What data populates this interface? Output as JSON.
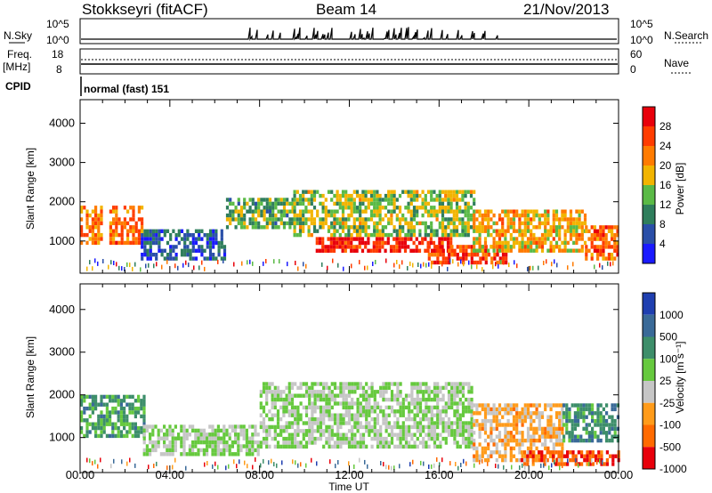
{
  "header": {
    "station": "Stokkseyri (fitACF)",
    "beam": "Beam 14",
    "date": "21/Nov/2013"
  },
  "status_panels": {
    "nsky_label": "N.Sky",
    "nsky_ticks": [
      "10^5",
      "10^0"
    ],
    "nsearch_label": "N.Search",
    "nsearch_ticks": [
      "10^5",
      "10^0"
    ],
    "freq_label": "Freq.",
    "freq_unit": "[MHz]",
    "freq_ticks": [
      "18",
      "8"
    ],
    "nave_label": "Nave",
    "nave_ticks": [
      "60",
      "0"
    ],
    "cpid_label": "CPID",
    "cpid_value": "normal (fast) 151"
  },
  "colors": {
    "power_scale": [
      "#1a1aff",
      "#2a4fa8",
      "#2f7e5c",
      "#5aba46",
      "#f2b400",
      "#ff7b00",
      "#ff3c00",
      "#e8000b"
    ],
    "velocity_scale": [
      "#1f3fb0",
      "#3a6a98",
      "#3d8e6a",
      "#66c93e",
      "#c6c6c6",
      "#ff9b1a",
      "#ff6a00",
      "#e8000b"
    ]
  },
  "chart_data": [
    {
      "type": "heatmap",
      "panel": "power",
      "xlabel": "",
      "ylabel": "Slant Range [km]",
      "x_ticks": [
        "00:00",
        "04:00",
        "08:00",
        "12:00",
        "16:00",
        "20:00",
        "00:00"
      ],
      "y_ticks": [
        1000,
        2000,
        3000,
        4000
      ],
      "ylim": [
        180,
        4600
      ],
      "colorbar": {
        "label": "Power [dB]",
        "ticks": [
          "28",
          "24",
          "20",
          "16",
          "12",
          "8",
          "4"
        ],
        "range": [
          0,
          30
        ]
      },
      "regions": [
        {
          "t0": 0.0,
          "t1": 1.0,
          "r0": 1000,
          "r1": 1900,
          "value": 20
        },
        {
          "t0": 1.3,
          "t1": 2.7,
          "r0": 1000,
          "r1": 1900,
          "value": 22
        },
        {
          "t0": 2.7,
          "t1": 6.5,
          "r0": 600,
          "r1": 1300,
          "value": 6
        },
        {
          "t0": 6.5,
          "t1": 9.5,
          "r0": 1400,
          "r1": 2100,
          "value": 12
        },
        {
          "t0": 9.5,
          "t1": 17.5,
          "r0": 1200,
          "r1": 2300,
          "value": 14
        },
        {
          "t0": 10.5,
          "t1": 16.5,
          "r0": 800,
          "r1": 1100,
          "value": 27
        },
        {
          "t0": 15.5,
          "t1": 19.0,
          "r0": 500,
          "r1": 900,
          "value": 25
        },
        {
          "t0": 17.5,
          "t1": 22.5,
          "r0": 800,
          "r1": 1800,
          "value": 18
        },
        {
          "t0": 22.5,
          "t1": 24.0,
          "r0": 600,
          "r1": 1400,
          "value": 22
        }
      ]
    },
    {
      "type": "heatmap",
      "panel": "velocity",
      "xlabel": "Time UT",
      "ylabel": "Slant Range [km]",
      "x_ticks": [
        "00:00",
        "04:00",
        "08:00",
        "12:00",
        "16:00",
        "20:00",
        "00:00"
      ],
      "y_ticks": [
        1000,
        2000,
        3000,
        4000
      ],
      "ylim": [
        180,
        4600
      ],
      "colorbar": {
        "label": "Velocity [m s⁻¹]",
        "ticks": [
          "1000",
          "500",
          "100",
          "25",
          "-25",
          "-100",
          "-500",
          "-1000"
        ],
        "range": [
          -1000,
          1000
        ]
      },
      "regions": [
        {
          "t0": 0.0,
          "t1": 2.8,
          "r0": 1000,
          "r1": 2000,
          "value": 300
        },
        {
          "t0": 2.8,
          "t1": 8.0,
          "r0": 600,
          "r1": 1300,
          "value": 0
        },
        {
          "t0": 8.0,
          "t1": 17.5,
          "r0": 800,
          "r1": 2300,
          "value": 0
        },
        {
          "t0": 17.5,
          "t1": 21.5,
          "r0": 500,
          "r1": 1800,
          "value": -300
        },
        {
          "t0": 21.5,
          "t1": 24.0,
          "r0": 900,
          "r1": 1800,
          "value": 400
        },
        {
          "t0": 19.5,
          "t1": 24.0,
          "r0": 350,
          "r1": 700,
          "value": -700
        }
      ]
    }
  ]
}
